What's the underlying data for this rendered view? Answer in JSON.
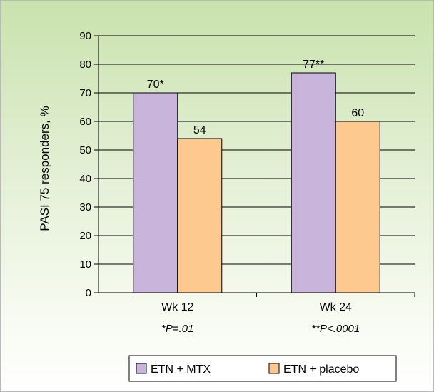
{
  "chart_data": {
    "type": "bar",
    "categories": [
      "Wk 12",
      "Wk 24"
    ],
    "category_notes": [
      "*P=.01",
      "**P<.0001"
    ],
    "series": [
      {
        "name": "ETN + MTX",
        "values": [
          70,
          77
        ],
        "data_labels": [
          "70*",
          "77**"
        ],
        "color": "#c9b5dc"
      },
      {
        "name": "ETN + placebo",
        "values": [
          54,
          60
        ],
        "data_labels": [
          "54",
          "60"
        ],
        "color": "#fec98f"
      }
    ],
    "ylabel": "PASI 75 responders, %",
    "xlabel": "",
    "ylim": [
      0,
      90
    ],
    "yticks": [
      0,
      10,
      20,
      30,
      40,
      50,
      60,
      70,
      80,
      90
    ],
    "grid": true,
    "legend": "bottom-center",
    "colors": {
      "background_top": "#c9e2ad",
      "bar_edge": "#000000",
      "gridline": "#000000"
    }
  }
}
